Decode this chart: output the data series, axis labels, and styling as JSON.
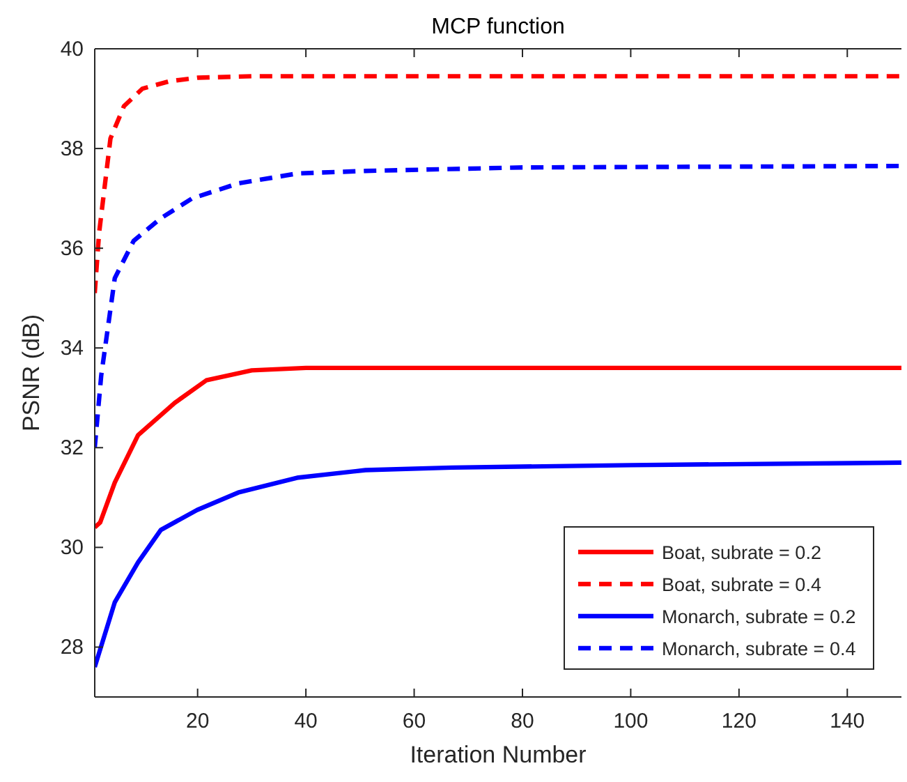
{
  "chart_data": {
    "type": "line",
    "title": "MCP function",
    "xlabel": "Iteration Number",
    "ylabel": "PSNR (dB)",
    "xlim": [
      1,
      150
    ],
    "xticks": [
      20,
      40,
      60,
      80,
      100,
      120,
      140
    ],
    "ylim": [
      27,
      40
    ],
    "yticks": [
      28,
      30,
      32,
      34,
      36,
      38,
      40
    ],
    "grid": false,
    "legend": "bottom right",
    "marker": "none",
    "series": [
      {
        "name": "Boat, subrate = 0.2",
        "color": "#ff0000",
        "line_style": "solid",
        "x": [
          1,
          2,
          4.7,
          9,
          15.8,
          21.6,
          30,
          40,
          60,
          100,
          150
        ],
        "values": [
          30.4,
          30.5,
          31.3,
          32.25,
          32.9,
          33.35,
          33.55,
          33.6,
          33.6,
          33.6,
          33.6
        ]
      },
      {
        "name": "Boat, subrate = 0.4",
        "color": "#ff0000",
        "line_style": "dashed",
        "x": [
          1,
          1.8,
          3.9,
          6.4,
          9.8,
          14.8,
          20,
          30,
          60,
          100,
          150
        ],
        "values": [
          35.1,
          36.3,
          38.2,
          38.85,
          39.2,
          39.35,
          39.42,
          39.45,
          39.45,
          39.45,
          39.45
        ]
      },
      {
        "name": "Monarch, subrate = 0.2",
        "color": "#0000ff",
        "line_style": "solid",
        "x": [
          1,
          4.7,
          9,
          13.2,
          19.9,
          27.5,
          38.6,
          51,
          67,
          100,
          150
        ],
        "values": [
          27.6,
          28.9,
          29.7,
          30.35,
          30.75,
          31.1,
          31.4,
          31.55,
          31.6,
          31.65,
          31.7
        ]
      },
      {
        "name": "Monarch, subrate = 0.4",
        "color": "#0000ff",
        "line_style": "dashed",
        "x": [
          1,
          2.2,
          4.7,
          8.2,
          13.2,
          19,
          27.5,
          38.5,
          51,
          80,
          150
        ],
        "values": [
          32,
          33.45,
          35.4,
          36.15,
          36.6,
          37,
          37.3,
          37.5,
          37.55,
          37.62,
          37.65
        ]
      }
    ]
  }
}
